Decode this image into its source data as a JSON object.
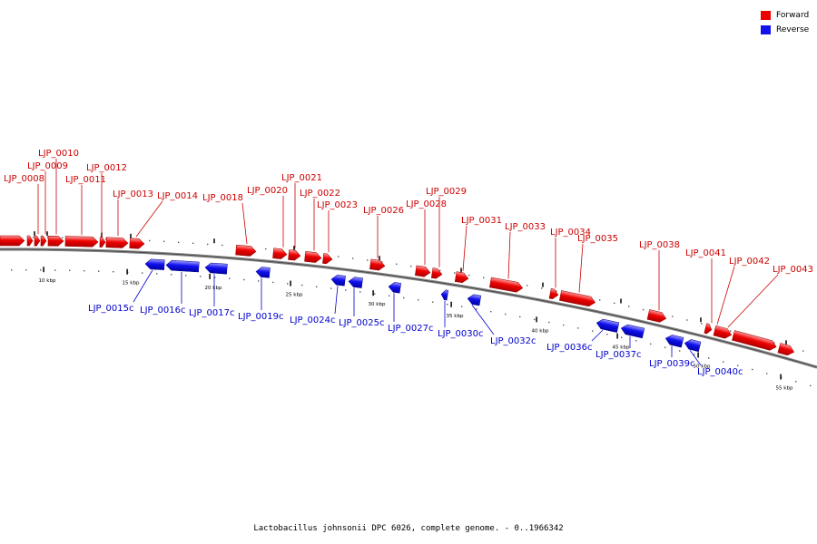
{
  "caption": "Lactobacillus johnsonii DPC 6026, complete genome. - 0..1966342",
  "legend": [
    {
      "label": "Forward",
      "color": "#ee0000"
    },
    {
      "label": "Reverse",
      "color": "#1111ee"
    }
  ],
  "colors": {
    "forward": "#ee0000",
    "reverse": "#1111ee",
    "forward_label": "#cc0000",
    "reverse_label": "#0000cc"
  },
  "scale_ticks": [
    "10 kbp",
    "15 kbp",
    "20 kbp",
    "25 kbp",
    "30 kbp",
    "35 kbp",
    "40 kbp",
    "45 kbp",
    "50 kbp",
    "55 kbp"
  ],
  "forward_genes": [
    "LJP_0008",
    "LJP_0009",
    "LJP_0010",
    "LJP_0011",
    "LJP_0012",
    "LJP_0013",
    "LJP_0014",
    "LJP_0018",
    "LJP_0020",
    "LJP_0021",
    "LJP_0022",
    "LJP_0023",
    "LJP_0026",
    "LJP_0028",
    "LJP_0029",
    "LJP_0031",
    "LJP_0033",
    "LJP_0034",
    "LJP_0035",
    "LJP_0038",
    "LJP_0041",
    "LJP_0042",
    "LJP_0043"
  ],
  "reverse_genes": [
    "LJP_0015c",
    "LJP_0016c",
    "LJP_0017c",
    "LJP_0019c",
    "LJP_0024c",
    "LJP_0025c",
    "LJP_0027c",
    "LJP_0030c",
    "LJP_0032c",
    "LJP_0036c",
    "LJP_0037c",
    "LJP_0039c",
    "LJP_0040c"
  ]
}
